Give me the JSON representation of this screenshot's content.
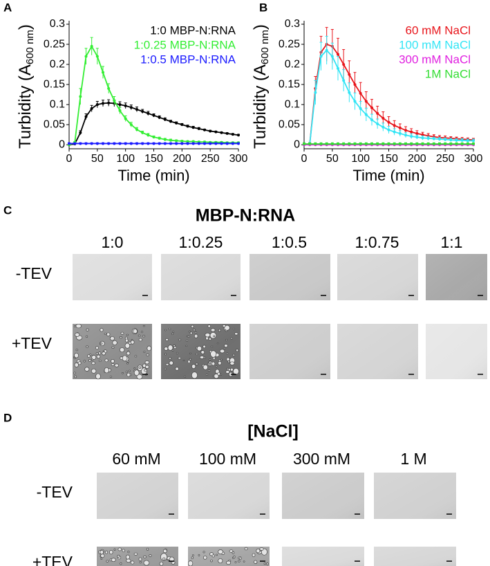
{
  "chart_data": [
    {
      "type": "line",
      "panel": "A",
      "ylabel": {
        "text": "Turbidity (A",
        "subscript": "600 nm",
        "close": ")"
      },
      "xlabel": "Time (min)",
      "x": [
        0,
        10,
        20,
        30,
        40,
        50,
        60,
        70,
        80,
        90,
        100,
        110,
        120,
        130,
        140,
        150,
        160,
        170,
        180,
        190,
        200,
        210,
        220,
        230,
        240,
        250,
        260,
        270,
        280,
        290,
        300
      ],
      "series": [
        {
          "name": "1:0 MBP-N:RNA",
          "color": "#000000",
          "values": [
            0,
            0.002,
            0.03,
            0.07,
            0.09,
            0.1,
            0.103,
            0.104,
            0.103,
            0.1,
            0.097,
            0.093,
            0.088,
            0.083,
            0.078,
            0.073,
            0.068,
            0.063,
            0.058,
            0.054,
            0.05,
            0.046,
            0.043,
            0.04,
            0.037,
            0.034,
            0.032,
            0.03,
            0.028,
            0.026,
            0.024
          ],
          "errors": [
            0.002,
            0.002,
            0.005,
            0.007,
            0.008,
            0.008,
            0.008,
            0.008,
            0.008,
            0.007,
            0.007,
            0.006,
            0.006,
            0.005,
            0.005,
            0.004,
            0.004,
            0.004,
            0.003,
            0.003,
            0.003,
            0.003,
            0.003,
            0.003,
            0.002,
            0.002,
            0.002,
            0.002,
            0.002,
            0.002,
            0.002
          ]
        },
        {
          "name": "1:0.25 MBP-N:RNA",
          "color": "#33ee33",
          "values": [
            0,
            0.005,
            0.12,
            0.22,
            0.245,
            0.22,
            0.18,
            0.14,
            0.11,
            0.085,
            0.065,
            0.05,
            0.038,
            0.03,
            0.024,
            0.019,
            0.016,
            0.013,
            0.011,
            0.01,
            0.009,
            0.008,
            0.008,
            0.007,
            0.007,
            0.006,
            0.006,
            0.006,
            0.005,
            0.005,
            0.005
          ],
          "errors": [
            0.002,
            0.003,
            0.02,
            0.02,
            0.022,
            0.02,
            0.015,
            0.012,
            0.01,
            0.008,
            0.007,
            0.006,
            0.005,
            0.004,
            0.004,
            0.003,
            0.003,
            0.003,
            0.003,
            0.002,
            0.002,
            0.002,
            0.002,
            0.002,
            0.002,
            0.002,
            0.002,
            0.002,
            0.002,
            0.002,
            0.002
          ]
        },
        {
          "name": "1:0.5 MBP-N:RNA",
          "color": "#1a1aff",
          "values": [
            0.003,
            0.003,
            0.003,
            0.003,
            0.003,
            0.003,
            0.003,
            0.003,
            0.003,
            0.003,
            0.003,
            0.003,
            0.003,
            0.003,
            0.003,
            0.003,
            0.003,
            0.003,
            0.003,
            0.003,
            0.003,
            0.003,
            0.003,
            0.003,
            0.003,
            0.003,
            0.003,
            0.003,
            0.003,
            0.003,
            0.003
          ],
          "errors": [
            0.002,
            0.002,
            0.002,
            0.002,
            0.002,
            0.002,
            0.002,
            0.002,
            0.002,
            0.002,
            0.002,
            0.002,
            0.002,
            0.002,
            0.002,
            0.002,
            0.002,
            0.002,
            0.002,
            0.002,
            0.002,
            0.002,
            0.002,
            0.002,
            0.002,
            0.002,
            0.002,
            0.002,
            0.002,
            0.002,
            0.002
          ]
        }
      ],
      "xlim": [
        0,
        300
      ],
      "xticks": [
        0,
        50,
        100,
        150,
        200,
        250,
        300
      ],
      "ylim": [
        -0.01,
        0.3
      ],
      "yticks": [
        0,
        0.05,
        0.1,
        0.15,
        0.2,
        0.25,
        0.3
      ],
      "legend": "upper right"
    },
    {
      "type": "line",
      "panel": "B",
      "ylabel": {
        "text": "Turbidity (A",
        "subscript": "600 nm",
        "close": ")"
      },
      "xlabel": "Time (min)",
      "x": [
        0,
        10,
        20,
        30,
        40,
        50,
        60,
        70,
        80,
        90,
        100,
        110,
        120,
        130,
        140,
        150,
        160,
        170,
        180,
        190,
        200,
        210,
        220,
        230,
        240,
        250,
        260,
        270,
        280,
        290,
        300
      ],
      "series": [
        {
          "name": "60 mM NaCl",
          "color": "#e8151b",
          "values": [
            0,
            0.002,
            0.14,
            0.23,
            0.25,
            0.245,
            0.225,
            0.2,
            0.175,
            0.15,
            0.128,
            0.108,
            0.092,
            0.078,
            0.066,
            0.056,
            0.048,
            0.042,
            0.036,
            0.032,
            0.028,
            0.025,
            0.022,
            0.02,
            0.018,
            0.017,
            0.016,
            0.015,
            0.014,
            0.013,
            0.012
          ],
          "errors": [
            0.002,
            0.003,
            0.03,
            0.04,
            0.042,
            0.042,
            0.04,
            0.037,
            0.034,
            0.03,
            0.027,
            0.024,
            0.021,
            0.018,
            0.016,
            0.014,
            0.012,
            0.01,
            0.009,
            0.008,
            0.007,
            0.006,
            0.006,
            0.005,
            0.005,
            0.005,
            0.004,
            0.004,
            0.004,
            0.004,
            0.004
          ]
        },
        {
          "name": "100 mM NaCl",
          "color": "#33e5f5",
          "values": [
            0,
            0.002,
            0.13,
            0.22,
            0.235,
            0.22,
            0.19,
            0.16,
            0.13,
            0.108,
            0.09,
            0.075,
            0.062,
            0.052,
            0.044,
            0.037,
            0.032,
            0.028,
            0.024,
            0.021,
            0.019,
            0.017,
            0.016,
            0.015,
            0.014,
            0.013,
            0.012,
            0.011,
            0.011,
            0.01,
            0.01
          ],
          "errors": [
            0.002,
            0.003,
            0.03,
            0.035,
            0.035,
            0.033,
            0.03,
            0.027,
            0.024,
            0.021,
            0.018,
            0.016,
            0.014,
            0.012,
            0.01,
            0.009,
            0.008,
            0.007,
            0.006,
            0.006,
            0.005,
            0.005,
            0.005,
            0.004,
            0.004,
            0.004,
            0.004,
            0.004,
            0.004,
            0.004,
            0.004
          ]
        },
        {
          "name": "300 mM NaCl",
          "color": "#e020e0",
          "values": [
            0,
            0,
            0,
            0,
            0,
            0,
            0,
            0,
            0,
            0,
            0,
            0,
            0,
            0,
            0,
            0,
            0,
            0,
            0,
            0,
            0,
            0,
            0,
            0,
            0,
            0,
            0,
            0,
            0,
            0,
            0
          ],
          "errors": [
            0.003,
            0.003,
            0.003,
            0.003,
            0.003,
            0.003,
            0.003,
            0.003,
            0.003,
            0.003,
            0.003,
            0.003,
            0.003,
            0.003,
            0.003,
            0.003,
            0.003,
            0.003,
            0.003,
            0.003,
            0.003,
            0.003,
            0.003,
            0.003,
            0.003,
            0.003,
            0.003,
            0.003,
            0.003,
            0.003,
            0.003
          ]
        },
        {
          "name": "1M NaCl",
          "color": "#33dd33",
          "values": [
            0.002,
            0.002,
            0.002,
            0.002,
            0.002,
            0.002,
            0.002,
            0.002,
            0.002,
            0.002,
            0.002,
            0.002,
            0.002,
            0.002,
            0.002,
            0.002,
            0.002,
            0.002,
            0.002,
            0.002,
            0.002,
            0.002,
            0.002,
            0.002,
            0.002,
            0.002,
            0.002,
            0.002,
            0.002,
            0.002,
            0.002
          ],
          "errors": [
            0.003,
            0.003,
            0.003,
            0.003,
            0.003,
            0.003,
            0.003,
            0.003,
            0.003,
            0.003,
            0.003,
            0.003,
            0.003,
            0.003,
            0.003,
            0.003,
            0.003,
            0.003,
            0.003,
            0.003,
            0.003,
            0.003,
            0.003,
            0.003,
            0.003,
            0.003,
            0.003,
            0.003,
            0.003,
            0.003,
            0.003
          ]
        }
      ],
      "xlim": [
        0,
        300
      ],
      "xticks": [
        0,
        50,
        100,
        150,
        200,
        250,
        300
      ],
      "ylim": [
        -0.01,
        0.3
      ],
      "yticks": [
        0,
        0.05,
        0.1,
        0.15,
        0.2,
        0.25,
        0.3
      ],
      "legend": "upper right"
    }
  ],
  "panels": [
    {
      "label": "C",
      "title": "MBP-N:RNA",
      "columns": [
        "1:0",
        "1:0.25",
        "1:0.5",
        "1:0.75",
        "1:1"
      ],
      "rows": [
        "-TEV",
        "+TEV"
      ]
    },
    {
      "label": "D",
      "title": "[NaCl]",
      "columns": [
        "60 mM",
        "100 mM",
        "300 mM",
        "1 M"
      ],
      "rows": [
        "-TEV",
        "+TEV"
      ]
    }
  ]
}
